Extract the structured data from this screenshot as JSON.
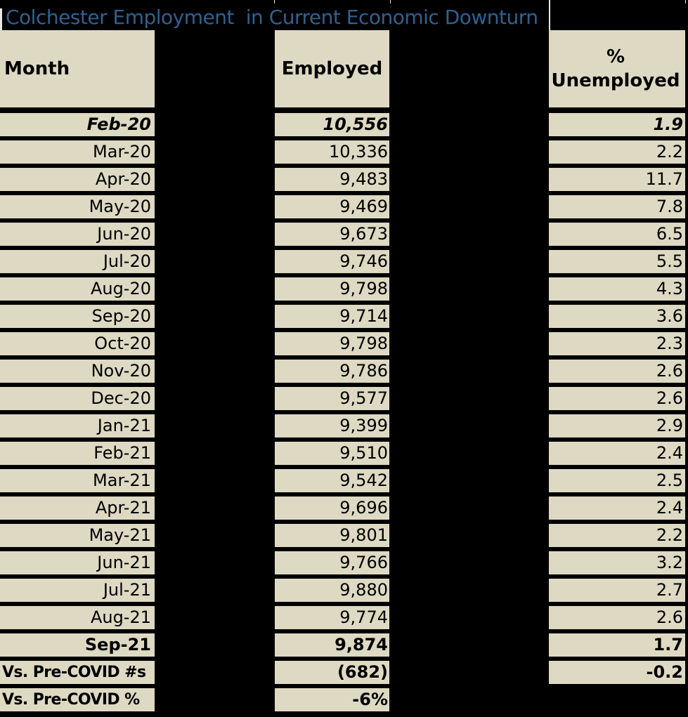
{
  "title": "Colchester Employment  in Current Economic Downturn",
  "headers": {
    "month": "Month",
    "employed": "Employed",
    "unemployed_line1": "%",
    "unemployed_line2": "Unemployed"
  },
  "colors": {
    "background": "#000000",
    "cell_fill": "#DDD9C3",
    "title_text": "#31618F",
    "cell_text": "#000000",
    "separator_line": "#E8E8E6"
  },
  "table": {
    "rows": [
      {
        "month": "Feb-20",
        "employed": "10,556",
        "unemployed": "1.9",
        "style": "bold-italic",
        "month_align": "right"
      },
      {
        "month": "Mar-20",
        "employed": "10,336",
        "unemployed": "2.2",
        "style": "normal",
        "month_align": "right"
      },
      {
        "month": "Apr-20",
        "employed": "9,483",
        "unemployed": "11.7",
        "style": "normal",
        "month_align": "right"
      },
      {
        "month": "May-20",
        "employed": "9,469",
        "unemployed": "7.8",
        "style": "normal",
        "month_align": "right"
      },
      {
        "month": "Jun-20",
        "employed": "9,673",
        "unemployed": "6.5",
        "style": "normal",
        "month_align": "right"
      },
      {
        "month": "Jul-20",
        "employed": "9,746",
        "unemployed": "5.5",
        "style": "normal",
        "month_align": "right"
      },
      {
        "month": "Aug-20",
        "employed": "9,798",
        "unemployed": "4.3",
        "style": "normal",
        "month_align": "right"
      },
      {
        "month": "Sep-20",
        "employed": "9,714",
        "unemployed": "3.6",
        "style": "normal",
        "month_align": "right"
      },
      {
        "month": "Oct-20",
        "employed": "9,798",
        "unemployed": "2.3",
        "style": "normal",
        "month_align": "right"
      },
      {
        "month": "Nov-20",
        "employed": "9,786",
        "unemployed": "2.6",
        "style": "normal",
        "month_align": "right"
      },
      {
        "month": "Dec-20",
        "employed": "9,577",
        "unemployed": "2.6",
        "style": "normal",
        "month_align": "right"
      },
      {
        "month": "Jan-21",
        "employed": "9,399",
        "unemployed": "2.9",
        "style": "normal",
        "month_align": "right"
      },
      {
        "month": "Feb-21",
        "employed": "9,510",
        "unemployed": "2.4",
        "style": "normal",
        "month_align": "right"
      },
      {
        "month": "Mar-21",
        "employed": "9,542",
        "unemployed": "2.5",
        "style": "normal",
        "month_align": "right"
      },
      {
        "month": "Apr-21",
        "employed": "9,696",
        "unemployed": "2.4",
        "style": "normal",
        "month_align": "right"
      },
      {
        "month": "May-21",
        "employed": "9,801",
        "unemployed": "2.2",
        "style": "normal",
        "month_align": "right"
      },
      {
        "month": "Jun-21",
        "employed": "9,766",
        "unemployed": "3.2",
        "style": "normal",
        "month_align": "right"
      },
      {
        "month": "Jul-21",
        "employed": "9,880",
        "unemployed": "2.7",
        "style": "normal",
        "month_align": "right"
      },
      {
        "month": "Aug-21",
        "employed": "9,774",
        "unemployed": "2.6",
        "style": "normal",
        "month_align": "right"
      },
      {
        "month": "Sep-21",
        "employed": "9,874",
        "unemployed": "1.7",
        "style": "bold",
        "month_align": "right"
      },
      {
        "month": "Vs. Pre-COVID #s",
        "employed": "(682)",
        "unemployed": "-0.2",
        "style": "bold",
        "month_align": "left"
      },
      {
        "month": "Vs. Pre-COVID %",
        "employed": "-6%",
        "unemployed": "",
        "style": "bold",
        "month_align": "left"
      }
    ]
  }
}
